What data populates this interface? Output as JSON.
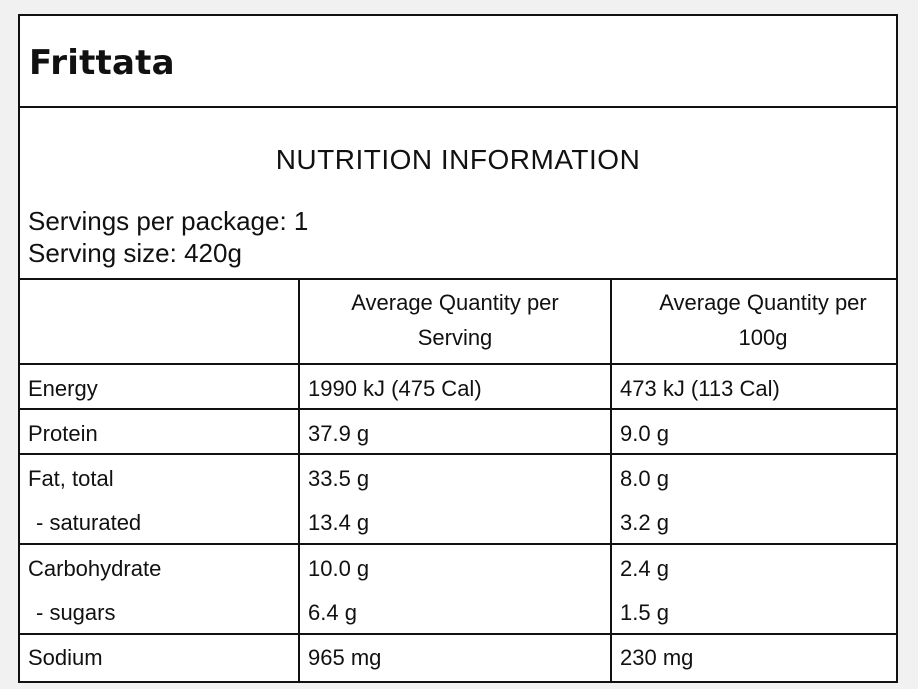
{
  "product": {
    "name": "Frittata"
  },
  "panel": {
    "heading": "NUTRITION INFORMATION",
    "servings_per_package": "Servings per package: 1",
    "serving_size": "Serving size: 420g"
  },
  "table": {
    "columns": [
      "",
      "Average Quantity per Serving",
      "Average Quantity per 100g"
    ],
    "rows": [
      {
        "name": "Energy",
        "per_serving": "1990 kJ (475 Cal)",
        "per_100g": "473 kJ (113 Cal)"
      },
      {
        "name": "Protein",
        "per_serving": "37.9 g",
        "per_100g": "9.0 g"
      },
      {
        "name": "Fat, total",
        "per_serving": "33.5 g",
        "per_100g": "8.0 g"
      },
      {
        "name": "- saturated",
        "per_serving": "13.4 g",
        "per_100g": "3.2 g"
      },
      {
        "name": "Carbohydrate",
        "per_serving": "10.0 g",
        "per_100g": "2.4 g"
      },
      {
        "name": "- sugars",
        "per_serving": "6.4 g",
        "per_100g": "1.5 g"
      },
      {
        "name": "Sodium",
        "per_serving": "965 mg",
        "per_100g": "230 mg"
      }
    ]
  }
}
